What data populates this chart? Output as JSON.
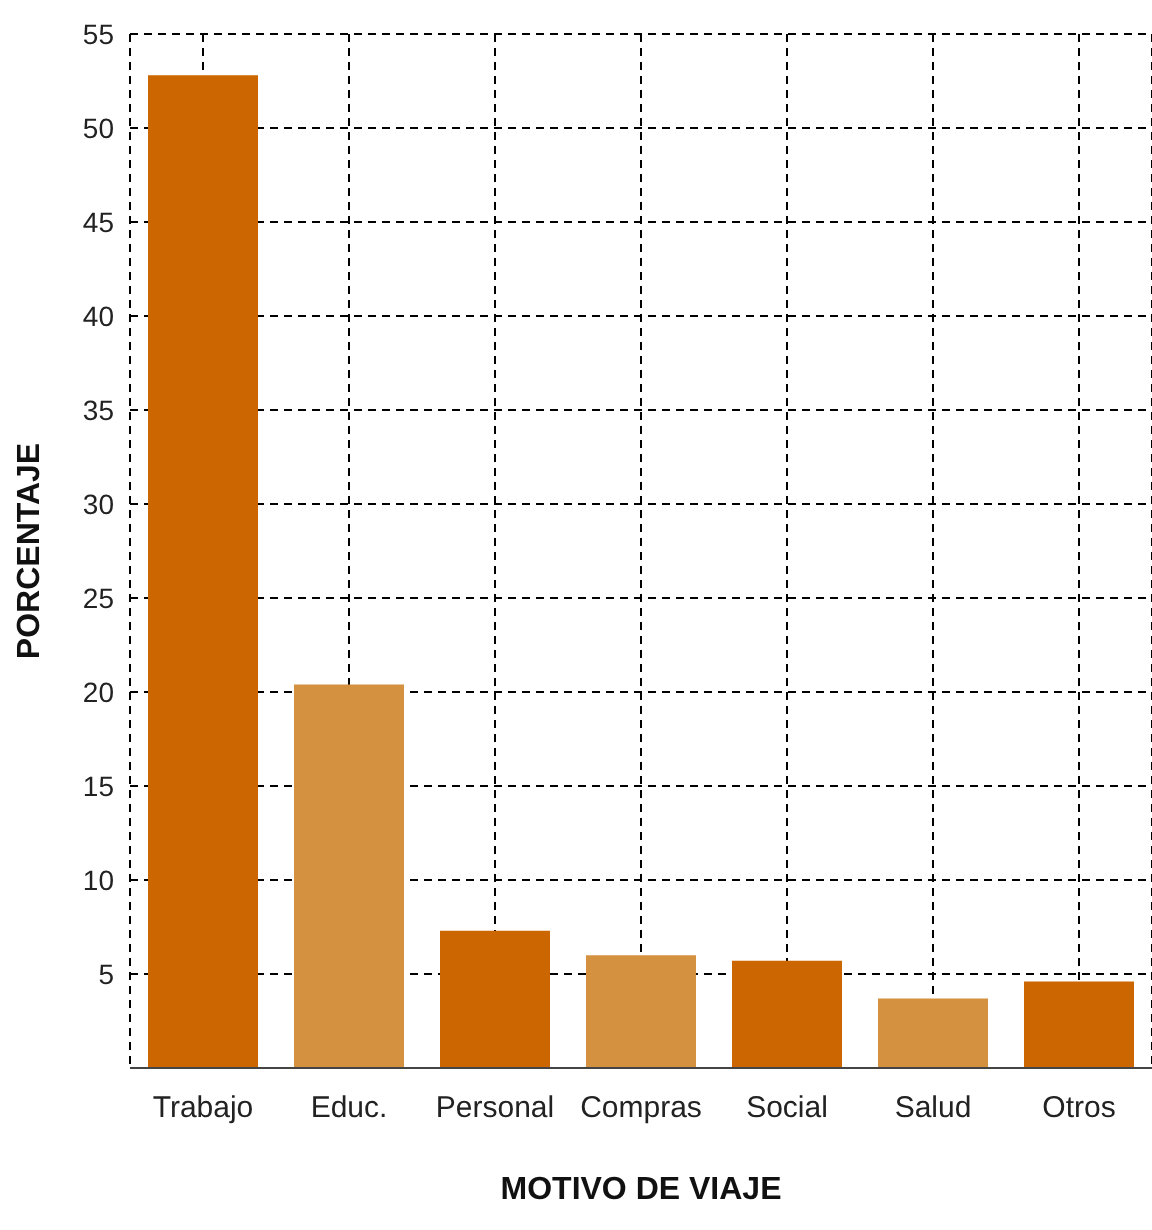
{
  "chart_data": {
    "type": "bar",
    "xlabel": "MOTIVO DE VIAJE",
    "ylabel": "PORCENTAJE",
    "categories": [
      "Trabajo",
      "Educ.",
      "Personal",
      "Compras",
      "Social",
      "Salud",
      "Otros"
    ],
    "values": [
      52.8,
      20.4,
      7.3,
      6.0,
      5.7,
      3.7,
      4.6
    ],
    "colors": [
      "#cc6600",
      "#d4913f",
      "#cc6600",
      "#d4913f",
      "#cc6600",
      "#d4913f",
      "#cc6600"
    ],
    "ylim": [
      0,
      55
    ],
    "yticks": [
      5,
      10,
      15,
      20,
      25,
      30,
      35,
      40,
      45,
      50,
      55
    ],
    "grid": true
  }
}
